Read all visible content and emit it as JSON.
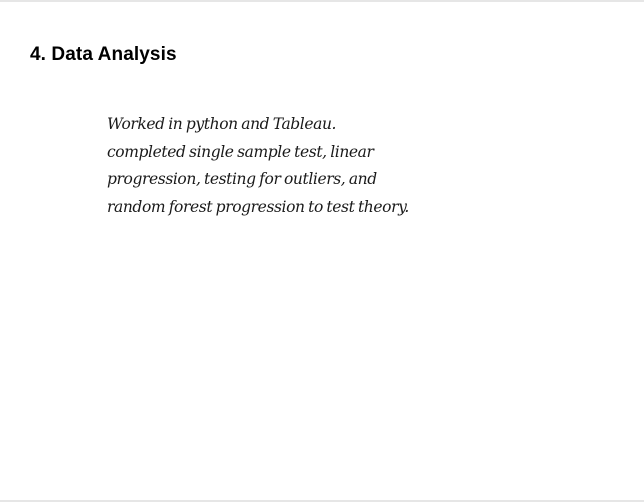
{
  "document": {
    "heading": "4. Data Analysis",
    "body": "Worked in python and Tableau. completed single sample test, linear progression, testing for outliers, and random forest progression to test theory."
  }
}
